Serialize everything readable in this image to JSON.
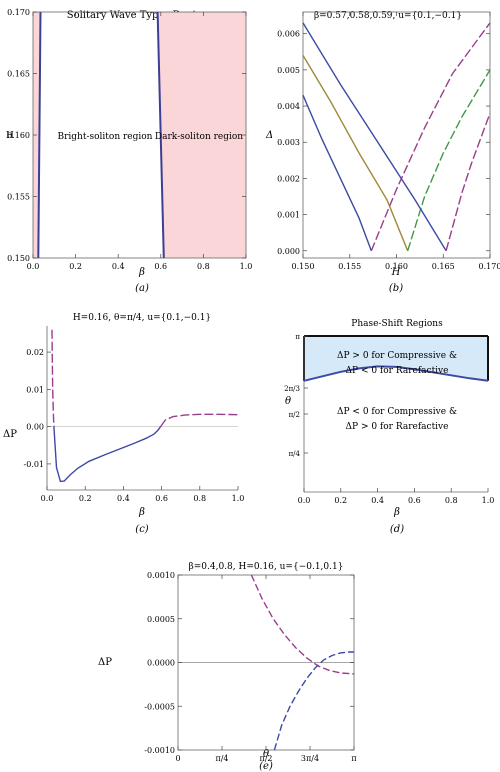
{
  "chart_data": [
    {
      "id": "a",
      "type": "area",
      "title": "Solitary Wave Types Regions",
      "xlabel": "β",
      "ylabel": "H",
      "caption": "(a)",
      "xlim": [
        0,
        1.0
      ],
      "ylim": [
        0.15,
        0.17
      ],
      "xticks": [
        "0.0",
        "0.2",
        "0.4",
        "0.6",
        "0.8",
        "1.0"
      ],
      "yticks": [
        "0.150",
        "0.155",
        "0.160",
        "0.165",
        "0.170"
      ],
      "annotations": [
        "Bright-soliton region",
        "Dark-soliton region"
      ],
      "boundaries": [
        {
          "name": "left boundary",
          "x": [
            0.025,
            0.035
          ],
          "y": [
            0.15,
            0.17
          ]
        },
        {
          "name": "right boundary",
          "x": [
            0.614,
            0.585
          ],
          "y": [
            0.15,
            0.17
          ]
        }
      ],
      "colors": {
        "dark_region": "#fbd6d8",
        "boundary": "#3b3f95"
      }
    },
    {
      "id": "b",
      "type": "line",
      "title": "β=0.57,0.58,0.59, u={0.1,−0.1}",
      "xlabel": "H",
      "ylabel": "Δ",
      "caption": "(b)",
      "xlim": [
        0.15,
        0.17
      ],
      "ylim": [
        -0.0002,
        0.0066
      ],
      "xticks": [
        "0.150",
        "0.155",
        "0.160",
        "0.165",
        "0.170"
      ],
      "yticks": [
        "0.000",
        "0.001",
        "0.002",
        "0.003",
        "0.004",
        "0.005",
        "0.006"
      ],
      "series": [
        {
          "root": 0.1573,
          "solid": {
            "x": [
              0.15,
              0.152,
              0.154,
              0.156,
              0.1573
            ],
            "y": [
              0.0043,
              0.0031,
              0.002,
              0.0009,
              0.0
            ]
          },
          "dashed": {
            "x": [
              0.1573,
              0.16,
              0.163,
              0.166,
              0.17
            ],
            "y": [
              0.0,
              0.0017,
              0.0034,
              0.0049,
              0.0063
            ]
          },
          "color_solid": "#3d4aa5",
          "color_dashed": "#9a3d8c"
        },
        {
          "root": 0.1612,
          "solid": {
            "x": [
              0.15,
              0.153,
              0.156,
              0.159,
              0.1612
            ],
            "y": [
              0.0054,
              0.0041,
              0.0027,
              0.0014,
              0.0
            ]
          },
          "dashed": {
            "x": [
              0.1612,
              0.163,
              0.165,
              0.167,
              0.17
            ],
            "y": [
              0.0,
              0.0015,
              0.0027,
              0.0037,
              0.005
            ]
          },
          "color_solid": "#a08a3a",
          "color_dashed": "#3e9a46"
        },
        {
          "root": 0.1653,
          "solid": {
            "x": [
              0.15,
              0.154,
              0.158,
              0.162,
              0.1653
            ],
            "y": [
              0.0063,
              0.0046,
              0.003,
              0.0014,
              0.0
            ]
          },
          "dashed": {
            "x": [
              0.1653,
              0.167,
              0.168,
              0.169,
              0.17
            ],
            "y": [
              0.0,
              0.0016,
              0.0024,
              0.0031,
              0.0038
            ]
          },
          "color_solid": "#3d4aa5",
          "color_dashed": "#9a3d8c"
        }
      ]
    },
    {
      "id": "c",
      "type": "line",
      "title": "H=0.16, θ=π/4, u={0.1,−0.1}",
      "xlabel": "β",
      "ylabel": "ΔP",
      "caption": "(c)",
      "xlim": [
        0,
        1.0
      ],
      "ylim": [
        -0.017,
        0.027
      ],
      "xticks": [
        "0.0",
        "0.2",
        "0.4",
        "0.6",
        "0.8",
        "1.0"
      ],
      "yticks": [
        "-0.01",
        "0.00",
        "0.01",
        "0.02"
      ],
      "series": [
        {
          "style": "dashed",
          "color": "#9a3d8c",
          "x": [
            0.026,
            0.028,
            0.03,
            0.033,
            0.036
          ],
          "y": [
            0.026,
            0.018,
            0.01,
            0.004,
            0.0
          ]
        },
        {
          "style": "solid",
          "color": "#3d4aa5",
          "x": [
            0.036,
            0.05,
            0.07,
            0.09,
            0.12,
            0.16,
            0.22,
            0.3,
            0.38,
            0.46,
            0.52,
            0.56,
            0.58,
            0.595
          ],
          "y": [
            0.0,
            -0.011,
            -0.0147,
            -0.0146,
            -0.013,
            -0.0112,
            -0.0093,
            -0.0076,
            -0.006,
            -0.0044,
            -0.0031,
            -0.002,
            -0.001,
            0.0
          ]
        },
        {
          "style": "dashed",
          "color": "#9a3d8c",
          "x": [
            0.595,
            0.62,
            0.66,
            0.72,
            0.8,
            0.9,
            1.0
          ],
          "y": [
            0.0,
            0.0018,
            0.0027,
            0.0031,
            0.0033,
            0.0033,
            0.0032
          ]
        }
      ]
    },
    {
      "id": "d",
      "type": "area",
      "title": "Phase-Shift Regions",
      "xlabel": "β",
      "ylabel": "θ",
      "caption": "(d)",
      "xlim": [
        0,
        1.0
      ],
      "ylim": [
        0,
        3.1416
      ],
      "xticks": [
        "0.0",
        "0.2",
        "0.4",
        "0.6",
        "0.8",
        "1.0"
      ],
      "yticks": [
        {
          "label": "π/4",
          "value": 0.7854
        },
        {
          "label": "π/2",
          "value": 1.5708
        },
        {
          "label": "2π/3",
          "value": 2.0944
        },
        {
          "label": "π",
          "value": 3.1416
        }
      ],
      "annotations": [
        "ΔP > 0 for Compressive &",
        "ΔP < 0 for Rarefactive",
        "ΔP < 0 for Compressive &",
        "ΔP > 0 for Rarefactive"
      ],
      "boundary": {
        "x": [
          0.0,
          0.1,
          0.2,
          0.3,
          0.4,
          0.5,
          0.6,
          0.7,
          0.8,
          0.9,
          1.0
        ],
        "y": [
          2.24,
          2.33,
          2.42,
          2.49,
          2.53,
          2.52,
          2.47,
          2.41,
          2.35,
          2.29,
          2.24
        ]
      },
      "colors": {
        "upper_region": "#d6e9f8",
        "boundary": "#3d4aa5"
      }
    },
    {
      "id": "e",
      "type": "line",
      "title": "β=0.4,0.8, H=0.16, u={−0.1,0.1}",
      "xlabel": "θ",
      "ylabel": "ΔP",
      "caption": "(e)",
      "xlim": [
        0,
        3.1416
      ],
      "ylim": [
        -0.001,
        0.001
      ],
      "xticks": [
        {
          "label": "0",
          "value": 0
        },
        {
          "label": "π/4",
          "value": 0.7854
        },
        {
          "label": "π/2",
          "value": 1.5708
        },
        {
          "label": "3π/4",
          "value": 2.3562
        },
        {
          "label": "π",
          "value": 3.1416
        }
      ],
      "yticks": [
        "-0.0010",
        "-0.0005",
        "0.0000",
        "0.0005",
        "0.0010"
      ],
      "series": [
        {
          "style": "dashed",
          "color": "#9a3d8c",
          "x": [
            1.31,
            1.5,
            1.7,
            1.9,
            2.1,
            2.3,
            2.5,
            2.7,
            2.9,
            3.1416
          ],
          "y": [
            0.001,
            0.00073,
            0.0005,
            0.00032,
            0.00017,
            5e-05,
            -4e-05,
            -9e-05,
            -0.00012,
            -0.00013
          ]
        },
        {
          "style": "dashed",
          "color": "#3d4aa5",
          "x": [
            1.72,
            1.85,
            2.0,
            2.15,
            2.3,
            2.45,
            2.6,
            2.75,
            2.9,
            3.05,
            3.1416
          ],
          "y": [
            -0.001,
            -0.00072,
            -0.0005,
            -0.00033,
            -0.00018,
            -6e-05,
            3e-05,
            8e-05,
            0.00011,
            0.00012,
            0.00012
          ]
        }
      ]
    }
  ]
}
